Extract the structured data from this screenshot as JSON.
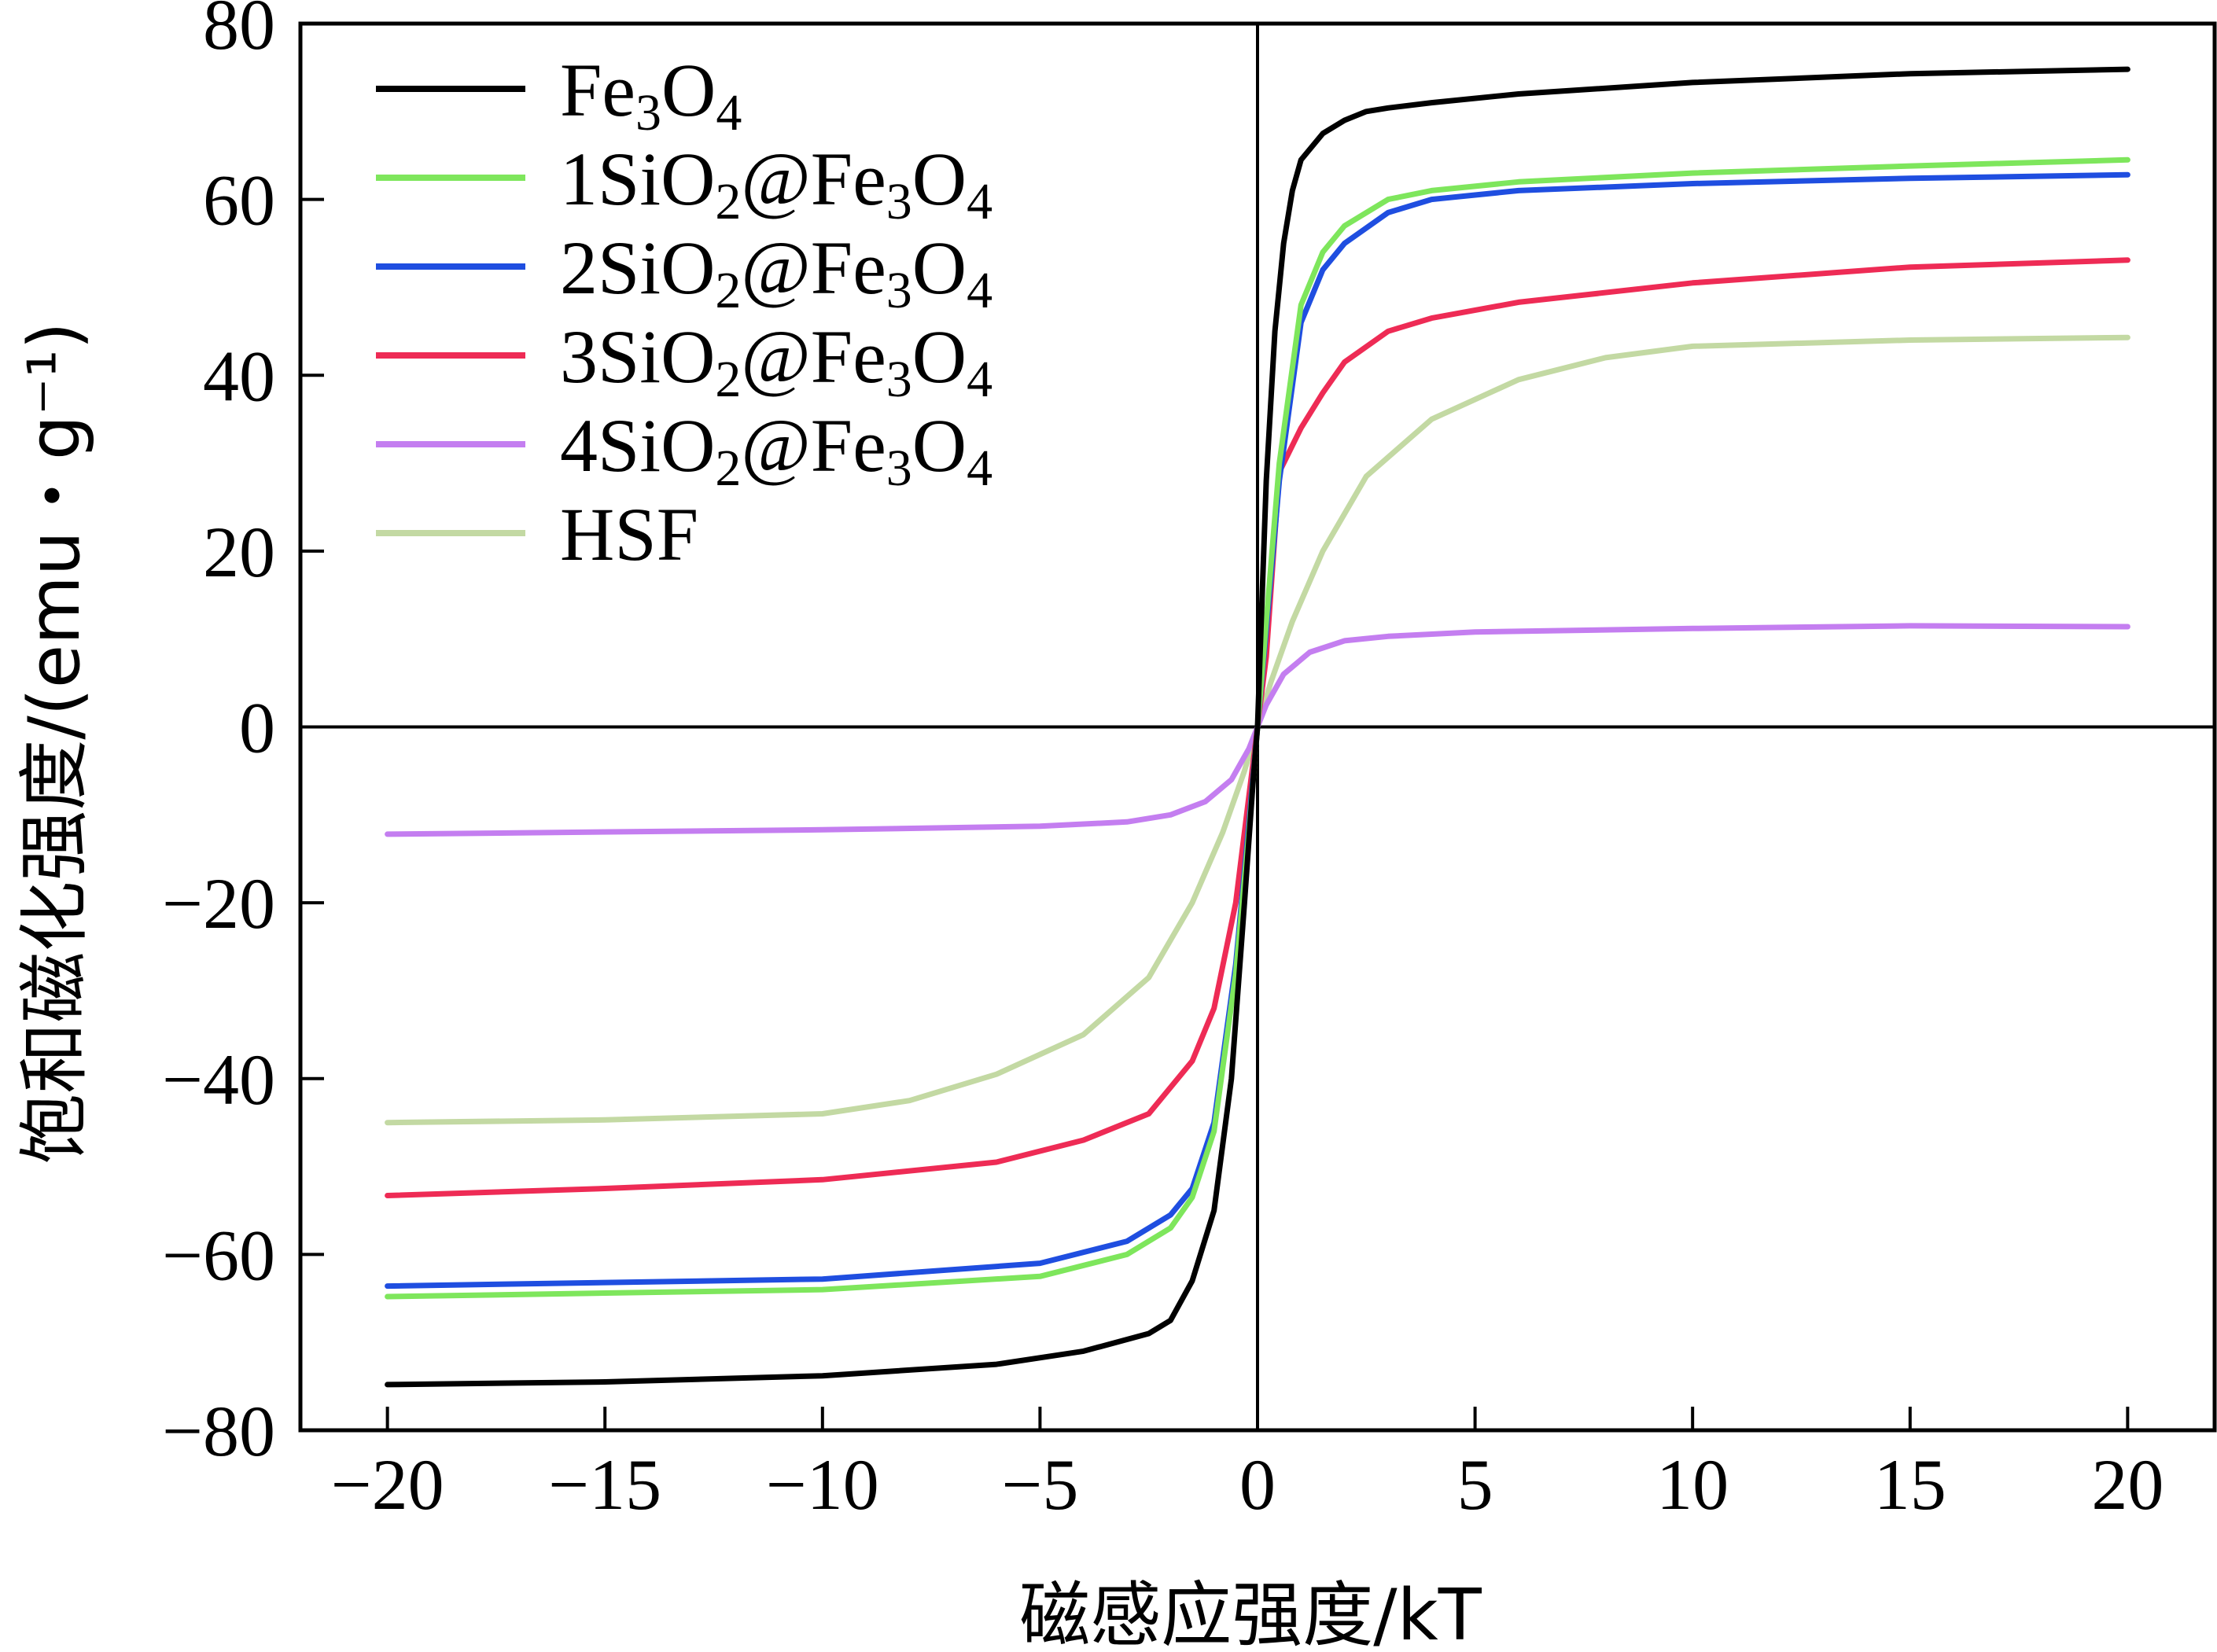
{
  "chart_data": {
    "type": "line",
    "title": "",
    "xlabel": "磁感应强度/kT",
    "ylabel": "饱和磁化强度/(emu・g⁻¹)",
    "xlim": [
      -22,
      22
    ],
    "ylim": [
      -80,
      80
    ],
    "xticks": [
      -20,
      -15,
      -10,
      -5,
      0,
      5,
      10,
      15,
      20
    ],
    "yticks": [
      -80,
      -60,
      -40,
      -20,
      0,
      20,
      40,
      60,
      80
    ],
    "xtick_labels": [
      "−20",
      "−15",
      "−10",
      "−5",
      "0",
      "5",
      "10",
      "15",
      "20"
    ],
    "ytick_labels": [
      "−80",
      "−60",
      "−40",
      "−20",
      "0",
      "20",
      "40",
      "60",
      "80"
    ],
    "grid": false,
    "legend_position": "top-left",
    "zero_lines": true,
    "series": [
      {
        "name": "Fe3O4",
        "label_parts": [
          {
            "t": "Fe"
          },
          {
            "t": "3",
            "sub": true
          },
          {
            "t": "O"
          },
          {
            "t": "4",
            "sub": true
          }
        ],
        "color": "#000000",
        "x": [
          -20,
          -15,
          -10,
          -6,
          -4,
          -2.5,
          -2,
          -1.5,
          -1,
          -0.6,
          -0.3,
          -0.1,
          0,
          0.1,
          0.2,
          0.4,
          0.6,
          0.8,
          1,
          1.5,
          2,
          2.5,
          3,
          4,
          6,
          10,
          15,
          20
        ],
        "y": [
          -74.8,
          -74.5,
          -73.8,
          -72.5,
          -71,
          -69,
          -67.5,
          -63,
          -55,
          -40,
          -20,
          -6,
          0,
          14,
          28,
          45,
          55,
          61,
          64.5,
          67.5,
          69,
          70,
          70.4,
          71,
          72,
          73.3,
          74.3,
          74.8
        ]
      },
      {
        "name": "1SiO2@Fe3O4",
        "label_parts": [
          {
            "t": "1SiO"
          },
          {
            "t": "2",
            "sub": true
          },
          {
            "t": "@Fe"
          },
          {
            "t": "3",
            "sub": true
          },
          {
            "t": "O"
          },
          {
            "t": "4",
            "sub": true
          }
        ],
        "color": "#7ee65c",
        "x": [
          -20,
          -10,
          -5,
          -3,
          -2,
          -1.5,
          -1,
          -0.5,
          -0.2,
          0,
          0.2,
          0.5,
          1,
          1.5,
          2,
          3,
          4,
          6,
          10,
          15,
          20
        ],
        "y": [
          -64.8,
          -64,
          -62.5,
          -60,
          -57,
          -53.5,
          -46,
          -28,
          -12,
          0,
          12,
          30,
          48,
          54,
          57,
          60,
          61,
          62,
          63,
          63.8,
          64.5
        ]
      },
      {
        "name": "2SiO2@Fe3O4",
        "label_parts": [
          {
            "t": "2SiO"
          },
          {
            "t": "2",
            "sub": true
          },
          {
            "t": "@Fe"
          },
          {
            "t": "3",
            "sub": true
          },
          {
            "t": "O"
          },
          {
            "t": "4",
            "sub": true
          }
        ],
        "color": "#1f4ee0",
        "x": [
          -20,
          -10,
          -5,
          -3,
          -2,
          -1.5,
          -1,
          -0.5,
          -0.2,
          0,
          0.2,
          0.5,
          1,
          1.5,
          2,
          3,
          4,
          6,
          10,
          15,
          20
        ],
        "y": [
          -63.6,
          -62.8,
          -61,
          -58.5,
          -55.5,
          -52.5,
          -45,
          -27,
          -11,
          0,
          11,
          28,
          46,
          52,
          55,
          58.5,
          60,
          61,
          61.8,
          62.4,
          62.8
        ]
      },
      {
        "name": "3SiO2@Fe3O4",
        "label_parts": [
          {
            "t": "3SiO"
          },
          {
            "t": "2",
            "sub": true
          },
          {
            "t": "@Fe"
          },
          {
            "t": "3",
            "sub": true
          },
          {
            "t": "O"
          },
          {
            "t": "4",
            "sub": true
          }
        ],
        "color": "#ee2b55",
        "x": [
          -20,
          -15,
          -10,
          -6,
          -4,
          -2.5,
          -1.5,
          -1,
          -0.5,
          -0.2,
          0,
          0.2,
          0.5,
          1,
          1.5,
          2,
          3,
          4,
          6,
          10,
          15,
          20
        ],
        "y": [
          -53.3,
          -52.5,
          -51.5,
          -49.5,
          -47,
          -44,
          -38,
          -32,
          -20,
          -8,
          0,
          8,
          29,
          34,
          38,
          41.5,
          45,
          46.5,
          48.3,
          50.5,
          52.3,
          53.1
        ]
      },
      {
        "name": "4SiO2@Fe3O4",
        "label_parts": [
          {
            "t": "4SiO"
          },
          {
            "t": "2",
            "sub": true
          },
          {
            "t": "@Fe"
          },
          {
            "t": "3",
            "sub": true
          },
          {
            "t": "O"
          },
          {
            "t": "4",
            "sub": true
          }
        ],
        "color": "#c47ef0",
        "x": [
          -20,
          -10,
          -5,
          -3,
          -2,
          -1.2,
          -0.6,
          -0.2,
          0,
          0.2,
          0.6,
          1.2,
          2,
          3,
          5,
          10,
          15,
          20
        ],
        "y": [
          -12.2,
          -11.7,
          -11.3,
          -10.8,
          -10,
          -8.5,
          -6,
          -2.5,
          0,
          2.5,
          6,
          8.5,
          9.8,
          10.3,
          10.8,
          11.2,
          11.5,
          11.4
        ]
      },
      {
        "name": "HSF",
        "label_parts": [
          {
            "t": "HSF"
          }
        ],
        "color": "#c3d9a3",
        "x": [
          -20,
          -15,
          -10,
          -8,
          -6,
          -4,
          -2.5,
          -1.5,
          -0.8,
          -0.3,
          0,
          0.3,
          0.8,
          1.5,
          2.5,
          4,
          6,
          8,
          10,
          15,
          20
        ],
        "y": [
          -45,
          -44.7,
          -44,
          -42.5,
          -39.5,
          -35,
          -28.5,
          -20,
          -12,
          -5,
          0,
          5,
          12,
          20,
          28.5,
          35,
          39.5,
          42,
          43.3,
          44,
          44.3
        ]
      }
    ]
  }
}
